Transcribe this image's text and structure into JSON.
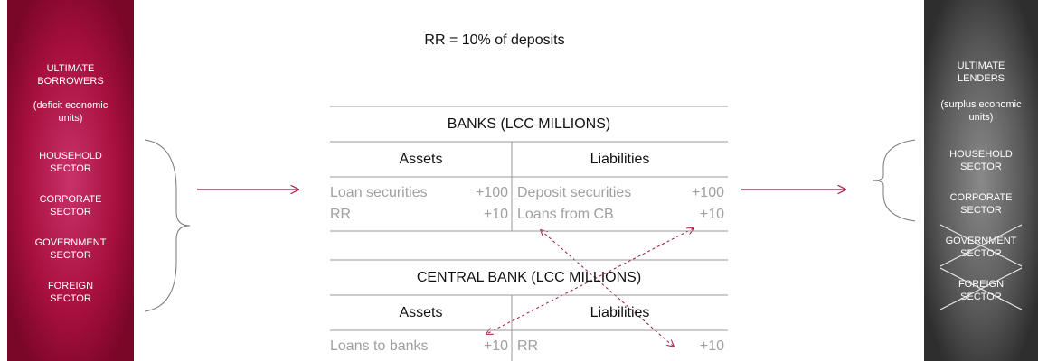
{
  "title": "RR = 10% of deposits",
  "borrowers": {
    "heading": [
      "ULTIMATE",
      "BORROWERS"
    ],
    "note": [
      "(deficit economic",
      "units)"
    ],
    "sectors": [
      {
        "lines": [
          "HOUSEHOLD",
          "SECTOR"
        ]
      },
      {
        "lines": [
          "CORPORATE",
          "SECTOR"
        ]
      },
      {
        "lines": [
          "GOVERNMENT",
          "SECTOR"
        ]
      },
      {
        "lines": [
          "FOREIGN",
          "SECTOR"
        ]
      }
    ]
  },
  "lenders": {
    "heading": [
      "ULTIMATE",
      "LENDERS"
    ],
    "note": [
      "(surplus economic",
      "units)"
    ],
    "sectors": [
      {
        "lines": [
          "HOUSEHOLD",
          "SECTOR"
        ],
        "crossed_out": false
      },
      {
        "lines": [
          "CORPORATE",
          "SECTOR"
        ],
        "crossed_out": false
      },
      {
        "lines": [
          "GOVERNMENT",
          "SECTOR"
        ],
        "crossed_out": true
      },
      {
        "lines": [
          "FOREIGN",
          "SECTOR"
        ],
        "crossed_out": true
      }
    ]
  },
  "tables": [
    {
      "title": "BANKS (LCC MILLIONS)",
      "columns": [
        "Assets",
        "Liabilities"
      ],
      "rows": [
        [
          {
            "label": "Loan securities",
            "amount": "+100"
          },
          {
            "label": "Deposit securities",
            "amount": "+100"
          }
        ],
        [
          {
            "label": "RR",
            "amount": "+10"
          },
          {
            "label": "Loans from CB",
            "amount": "+10"
          }
        ]
      ]
    },
    {
      "title": "CENTRAL BANK (LCC MILLIONS)",
      "columns": [
        "Assets",
        "Liabilities"
      ],
      "rows": [
        [
          {
            "label": "Loans to banks",
            "amount": "+10"
          },
          {
            "label": "RR",
            "amount": "+10"
          }
        ]
      ]
    }
  ]
}
